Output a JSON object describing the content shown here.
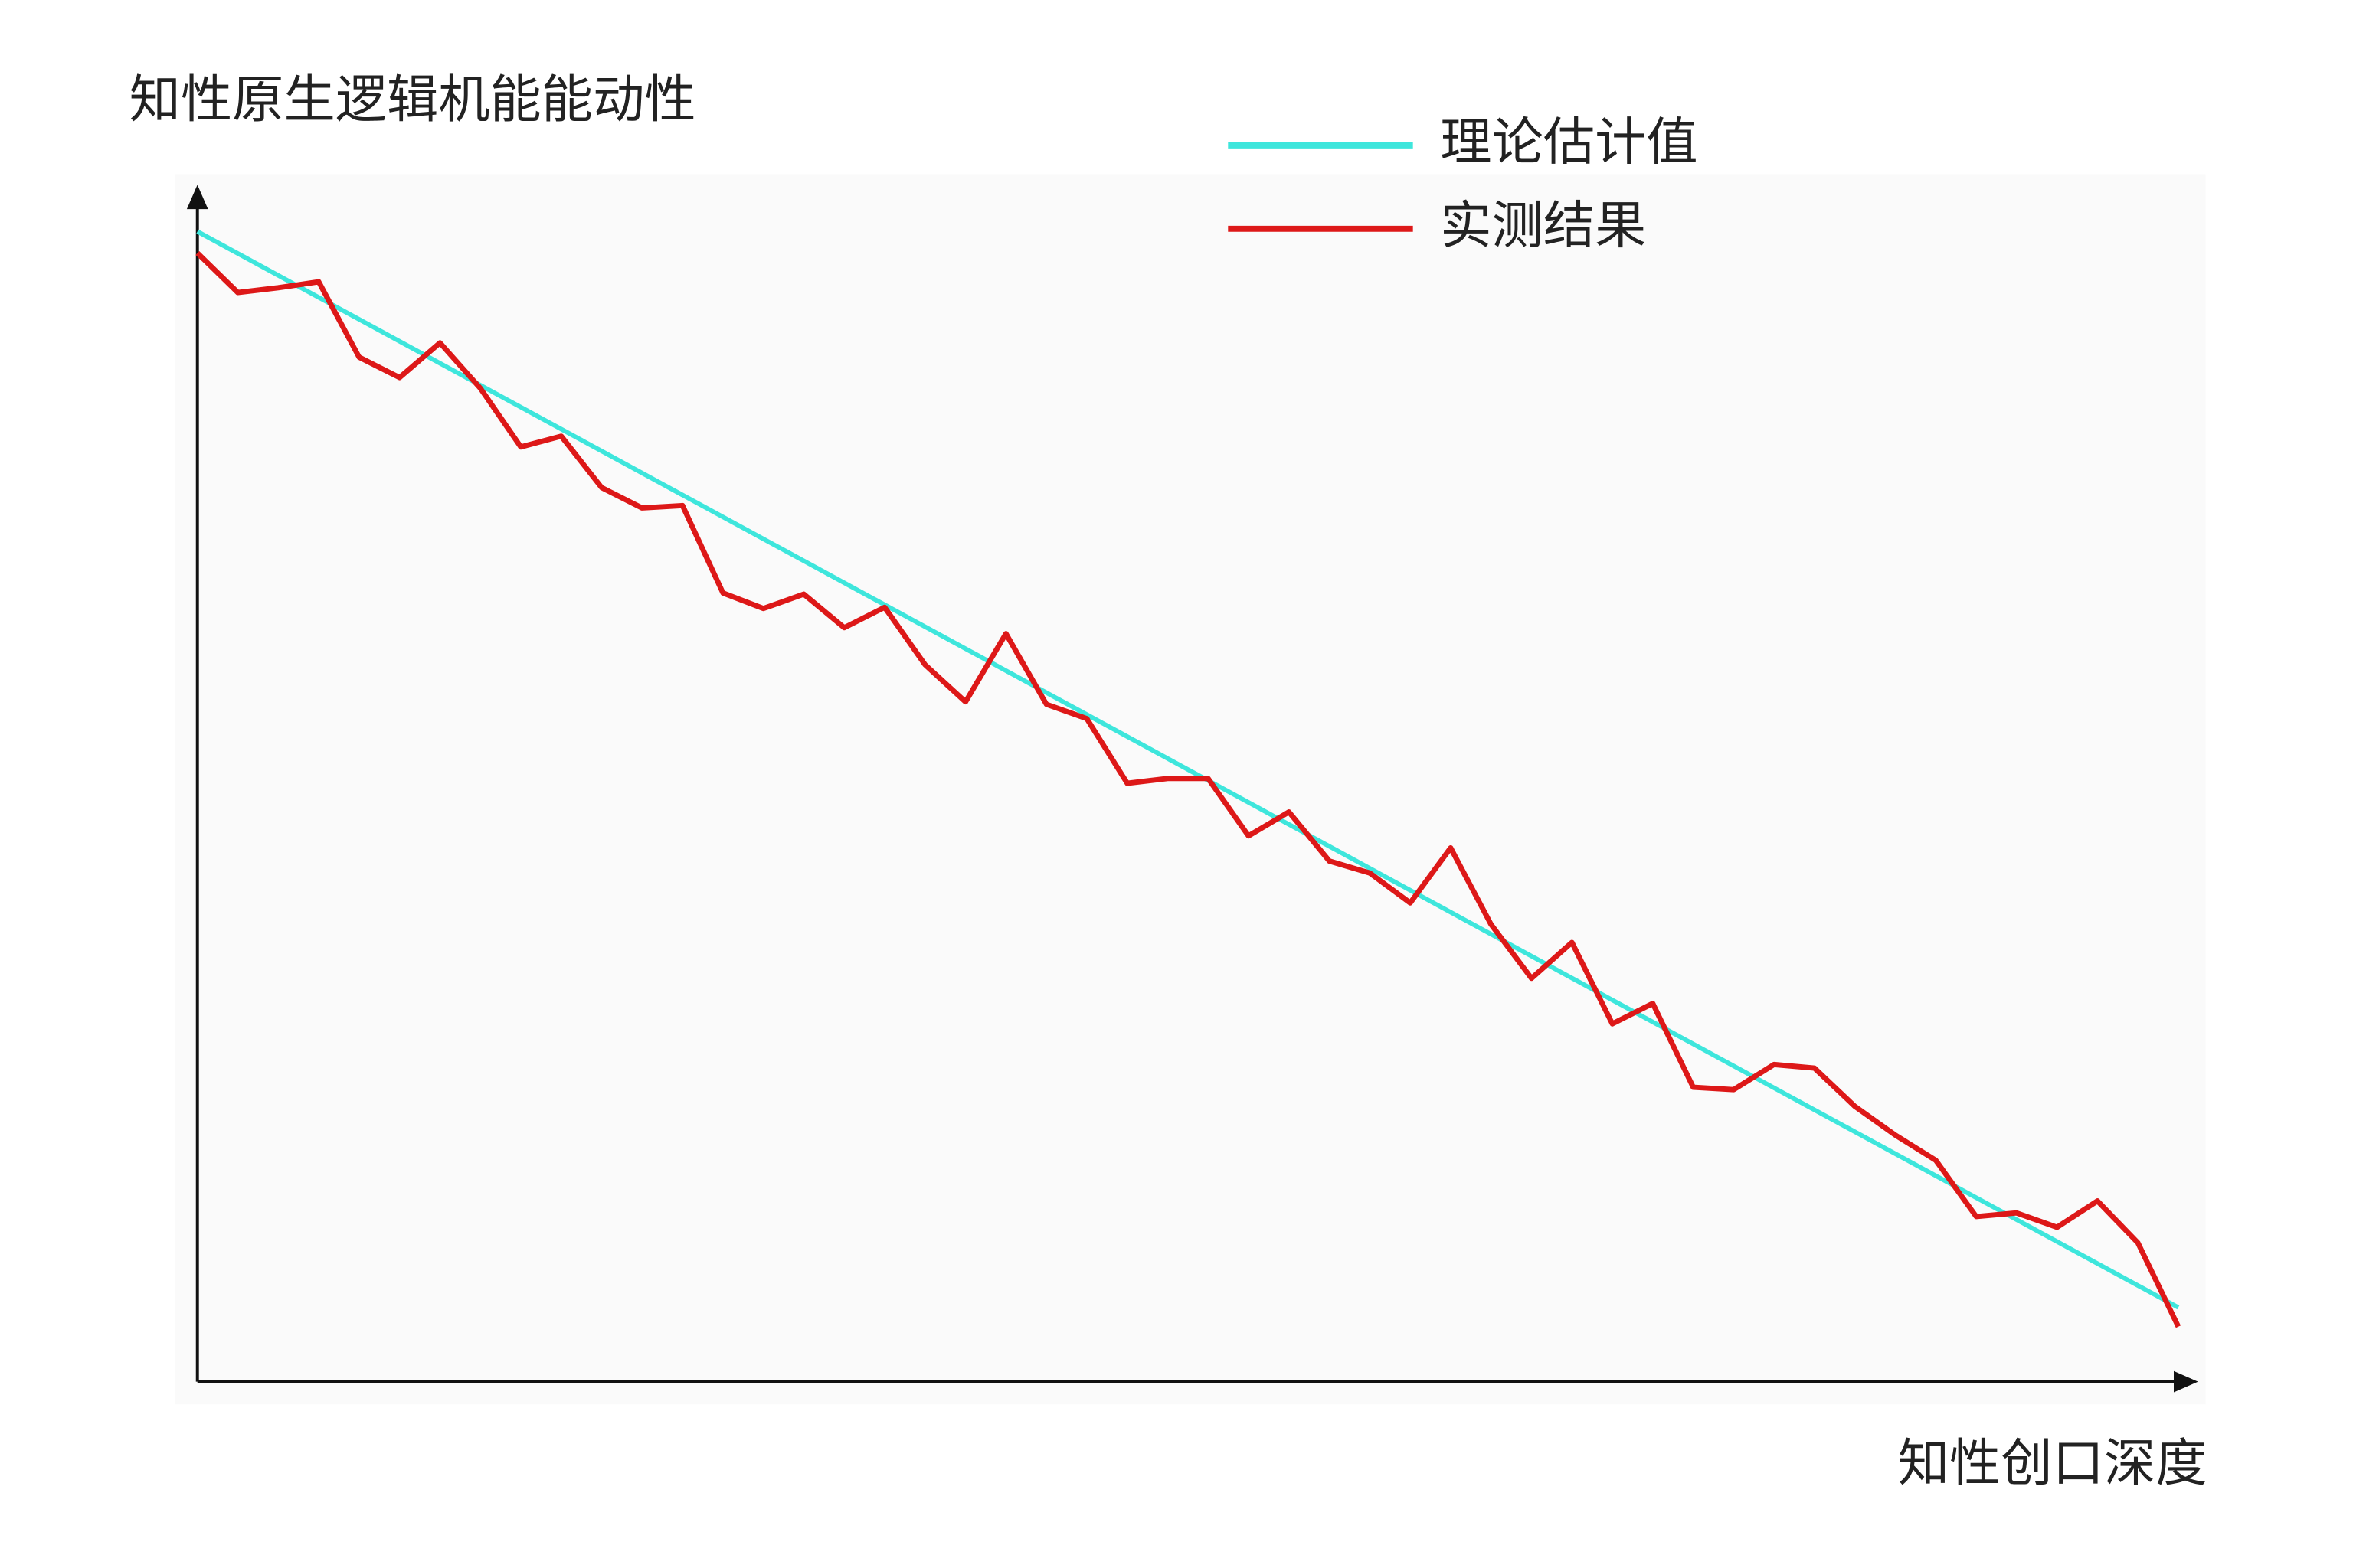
{
  "chart_data": {
    "type": "line",
    "title": "知性原生逻辑机能能动性",
    "x_label": "知性创口深度",
    "xlim": [
      0,
      49
    ],
    "ylim": [
      0,
      100
    ],
    "legend": "top-right",
    "series": [
      {
        "name": "理论估计值",
        "color": "#3ee6dc",
        "x": [
          0,
          49
        ],
        "values": [
          96.1,
          6.2
        ]
      },
      {
        "name": "实测结果",
        "color": "#dd1818",
        "x": [
          0,
          1,
          2,
          3,
          4,
          5,
          6,
          7,
          8,
          9,
          10,
          11,
          12,
          13,
          14,
          15,
          16,
          17,
          18,
          19,
          20,
          21,
          22,
          23,
          24,
          25,
          26,
          27,
          28,
          29,
          30,
          31,
          32,
          33,
          34,
          35,
          36,
          37,
          38,
          39,
          40,
          41,
          42,
          43,
          44,
          45,
          46,
          47,
          48,
          49
        ],
        "values": [
          94.3,
          91.0,
          91.4,
          91.9,
          85.6,
          83.9,
          86.8,
          83.0,
          78.1,
          79.0,
          74.7,
          73.0,
          73.2,
          65.9,
          64.6,
          65.8,
          63.0,
          64.7,
          59.9,
          56.8,
          62.5,
          56.6,
          55.4,
          50.0,
          50.4,
          50.4,
          45.6,
          47.6,
          43.5,
          42.5,
          40.0,
          44.6,
          38.2,
          33.7,
          36.7,
          29.9,
          31.6,
          24.6,
          24.4,
          26.5,
          26.2,
          23.0,
          20.6,
          18.5,
          13.8,
          14.1,
          12.9,
          15.1,
          11.6,
          4.6
        ]
      }
    ]
  }
}
